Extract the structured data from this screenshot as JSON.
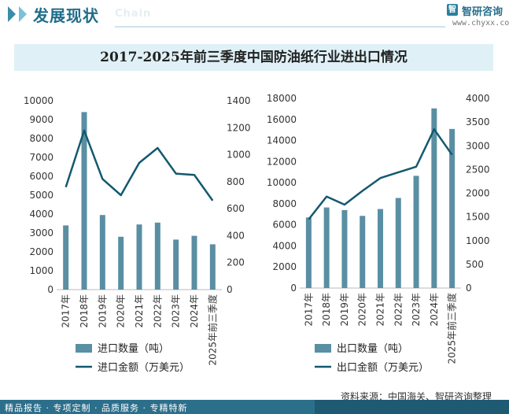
{
  "header": {
    "section_title": "发展现状",
    "section_sub": "Chain",
    "logo_mark": "智",
    "logo_text": "智研咨询",
    "logo_url": "www.chyxx.com"
  },
  "footer": {
    "source": "资料来源：中国海关、智研咨询整理",
    "slogan": "精品报告 · 专项定制 · 品质服务 · 专精特新"
  },
  "colors": {
    "bar": "#5a8fa3",
    "line": "#13596f",
    "title_band": "#dff1f7"
  },
  "chart_data": [
    {
      "type": "bar",
      "title": "2017-2025年前三季度中国防油纸行业进出口情况",
      "categories": [
        "2017年",
        "2018年",
        "2019年",
        "2020年",
        "2021年",
        "2022年",
        "2023年",
        "2024年",
        "2025年前三季度"
      ],
      "series": [
        {
          "name": "进口数量（吨）",
          "kind": "bar",
          "axis": "left",
          "values": [
            3400,
            9400,
            3950,
            2800,
            3450,
            3550,
            2650,
            2850,
            2400
          ]
        },
        {
          "name": "进口金额（万美元）",
          "kind": "line",
          "axis": "right",
          "values": [
            760,
            1180,
            820,
            700,
            940,
            1050,
            860,
            850,
            660
          ]
        }
      ],
      "ylim_left": [
        0,
        10000
      ],
      "yticks_left": [
        0,
        1000,
        2000,
        3000,
        4000,
        5000,
        6000,
        7000,
        8000,
        9000,
        10000
      ],
      "ylim_right": [
        0,
        1400
      ],
      "yticks_right": [
        0,
        200,
        400,
        600,
        800,
        1000,
        1200,
        1400
      ],
      "legend": "bottom"
    },
    {
      "type": "bar",
      "title": "2017-2025年前三季度中国防油纸行业进出口情况",
      "categories": [
        "2017年",
        "2018年",
        "2019年",
        "2020年",
        "2021年",
        "2022年",
        "2023年",
        "2024年",
        "2025年前三季度"
      ],
      "series": [
        {
          "name": "出口数量（吨）",
          "kind": "bar",
          "axis": "left",
          "values": [
            6700,
            7650,
            7400,
            6850,
            7500,
            8550,
            10650,
            17050,
            15100
          ]
        },
        {
          "name": "出口金额（万美元）",
          "kind": "line",
          "axis": "right",
          "values": [
            1450,
            1930,
            1760,
            2050,
            2320,
            2440,
            2560,
            3350,
            2810
          ]
        }
      ],
      "ylim_left": [
        0,
        18000
      ],
      "yticks_left": [
        0,
        2000,
        4000,
        6000,
        8000,
        10000,
        12000,
        14000,
        16000,
        18000
      ],
      "ylim_right": [
        0,
        4000
      ],
      "yticks_right": [
        0,
        500,
        1000,
        1500,
        2000,
        2500,
        3000,
        3500,
        4000
      ],
      "legend": "bottom"
    }
  ]
}
